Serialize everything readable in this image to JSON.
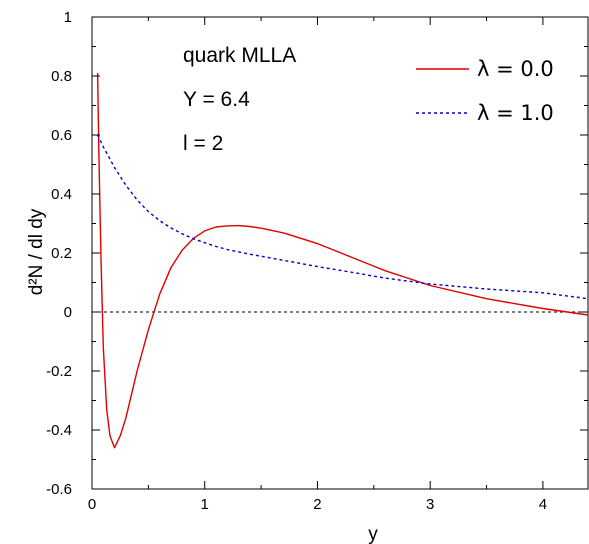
{
  "chart_data": {
    "type": "line",
    "title": "",
    "xlabel": "y",
    "ylabel": "d²N / dl dy",
    "xlim": [
      0,
      4.4
    ],
    "ylim": [
      -0.6,
      1.0
    ],
    "xticks": [
      0,
      1,
      2,
      3,
      4
    ],
    "yticks": [
      -0.6,
      -0.4,
      -0.2,
      0,
      0.2,
      0.4,
      0.6,
      0.8,
      1
    ],
    "xtick_labels": [
      "0",
      "1",
      "2",
      "3",
      "4"
    ],
    "ytick_labels": [
      "-0.6",
      "-0.4",
      "-0.2",
      "0",
      "0.2",
      "0.4",
      "0.6",
      "0.8",
      "1"
    ],
    "grid": false,
    "legend_position": "top-right",
    "annotations": [
      "quark MLLA",
      "Y = 6.4",
      "l = 2"
    ],
    "reference_line": {
      "y": 0,
      "color": "#000000",
      "style": "dashed"
    },
    "series": [
      {
        "name": "λ = 0.0",
        "color": "#e00000",
        "style": "solid",
        "x": [
          0.05,
          0.06,
          0.08,
          0.1,
          0.13,
          0.16,
          0.2,
          0.25,
          0.3,
          0.4,
          0.5,
          0.6,
          0.7,
          0.8,
          0.9,
          1.0,
          1.1,
          1.2,
          1.3,
          1.4,
          1.5,
          1.7,
          2.0,
          2.3,
          2.6,
          3.0,
          3.5,
          4.0,
          4.4
        ],
        "y": [
          0.81,
          0.55,
          0.18,
          -0.12,
          -0.33,
          -0.42,
          -0.46,
          -0.42,
          -0.36,
          -0.2,
          -0.06,
          0.06,
          0.15,
          0.21,
          0.25,
          0.275,
          0.288,
          0.292,
          0.293,
          0.29,
          0.284,
          0.268,
          0.232,
          0.186,
          0.14,
          0.09,
          0.045,
          0.012,
          -0.01
        ]
      },
      {
        "name": "λ = 1.0",
        "color": "#0000d0",
        "style": "dashed",
        "x": [
          0.05,
          0.1,
          0.2,
          0.3,
          0.4,
          0.5,
          0.6,
          0.7,
          0.8,
          0.9,
          1.0,
          1.1,
          1.2,
          1.4,
          1.6,
          1.8,
          2.0,
          2.3,
          2.6,
          3.0,
          3.5,
          4.0,
          4.4
        ],
        "y": [
          0.6,
          0.56,
          0.49,
          0.43,
          0.38,
          0.34,
          0.31,
          0.285,
          0.265,
          0.248,
          0.235,
          0.222,
          0.212,
          0.196,
          0.182,
          0.168,
          0.154,
          0.135,
          0.115,
          0.095,
          0.078,
          0.065,
          0.045
        ]
      }
    ]
  }
}
